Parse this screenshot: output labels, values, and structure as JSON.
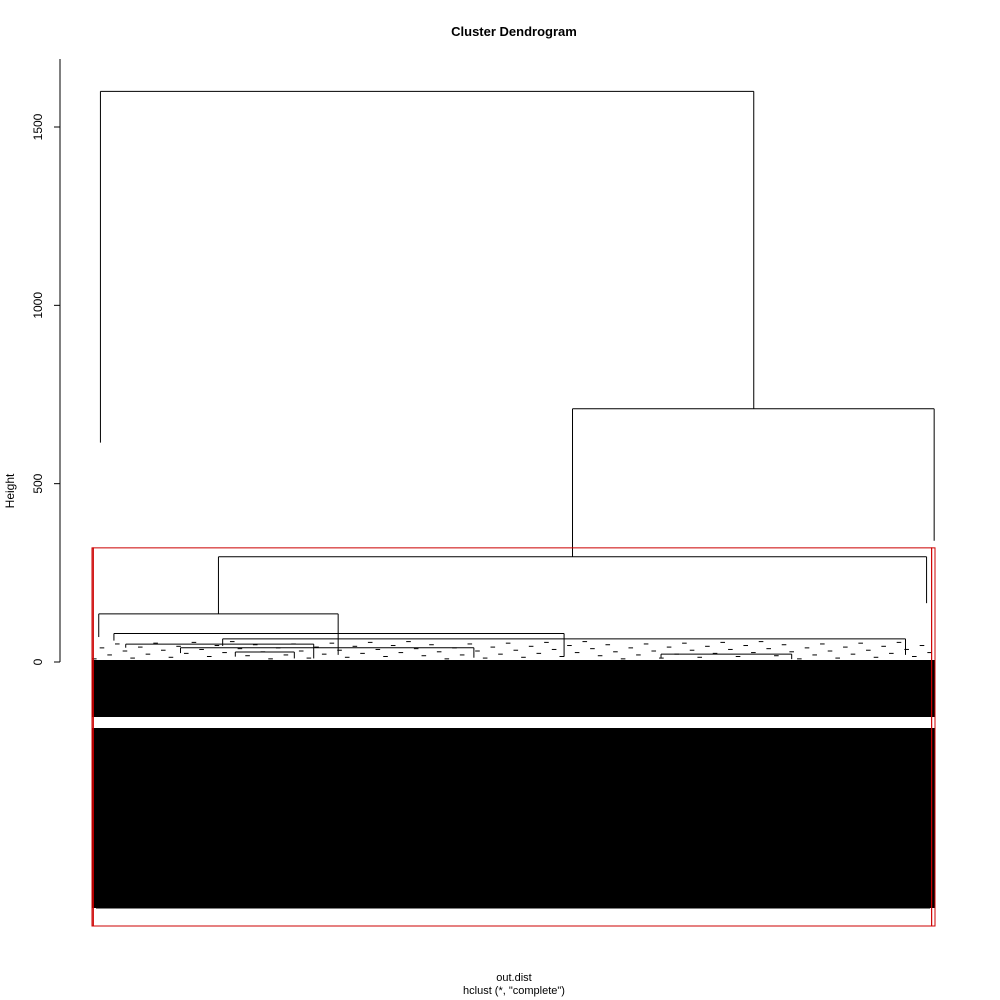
{
  "chart_data": {
    "type": "dendrogram",
    "title": "Cluster Dendrogram",
    "ylabel": "Height",
    "xlabel": "out.dist",
    "sublabel": "hclust (*, \"complete\")",
    "ylim": [
      0,
      1650
    ],
    "yticks": [
      0,
      500,
      1000,
      1500
    ],
    "ytick_labels": [
      "0",
      "500",
      "1000",
      "1500"
    ],
    "method": "complete",
    "root_height": 1600,
    "merges": [
      {
        "name": "root",
        "height": 1600,
        "left_center": 0.01,
        "right_center": 0.785,
        "left_height": 615,
        "right_height": 710
      },
      {
        "name": "right-main",
        "height": 710,
        "left_center": 0.57,
        "right_center": 0.999,
        "left_height": 295,
        "right_height": 340
      },
      {
        "name": "mid-cluster",
        "height": 295,
        "left_center": 0.15,
        "right_center": 0.99,
        "left_height": 135,
        "right_height": 165
      },
      {
        "name": "sub-left",
        "height": 135,
        "left_center": 0.008,
        "right_center": 0.292,
        "left_height": 70,
        "right_height": 20
      },
      {
        "name": "sub-a",
        "height": 80,
        "left_center": 0.026,
        "right_center": 0.56,
        "left_height": 60,
        "right_height": 15
      },
      {
        "name": "sub-b",
        "height": 65,
        "left_center": 0.155,
        "right_center": 0.965,
        "left_height": 45,
        "right_height": 20
      },
      {
        "name": "sub-c",
        "height": 50,
        "left_center": 0.04,
        "right_center": 0.263,
        "left_height": 40,
        "right_height": 10
      },
      {
        "name": "sub-d",
        "height": 40,
        "left_center": 0.105,
        "right_center": 0.453,
        "left_height": 25,
        "right_height": 12
      },
      {
        "name": "sub-e",
        "height": 28,
        "left_center": 0.17,
        "right_center": 0.24,
        "left_height": 15,
        "right_height": 10
      },
      {
        "name": "sub-f",
        "height": 22,
        "left_center": 0.675,
        "right_center": 0.83,
        "left_height": 12,
        "right_height": 8
      }
    ],
    "cut_rectangles": [
      {
        "cluster": 1,
        "left_frac": 0.0,
        "right_frac": 0.0015,
        "color": "#ff0000"
      },
      {
        "cluster": 2,
        "left_frac": 0.0015,
        "right_frac": 0.996,
        "color": "#ff0000"
      },
      {
        "cluster": 3,
        "left_frac": 0.996,
        "right_frac": 1.0,
        "color": "#ff0000"
      }
    ],
    "cut_height": 320,
    "grid": false,
    "legend": "none"
  },
  "colors": {
    "lines": "#000000",
    "cut_box": "#cc0000",
    "background": "#ffffff"
  }
}
